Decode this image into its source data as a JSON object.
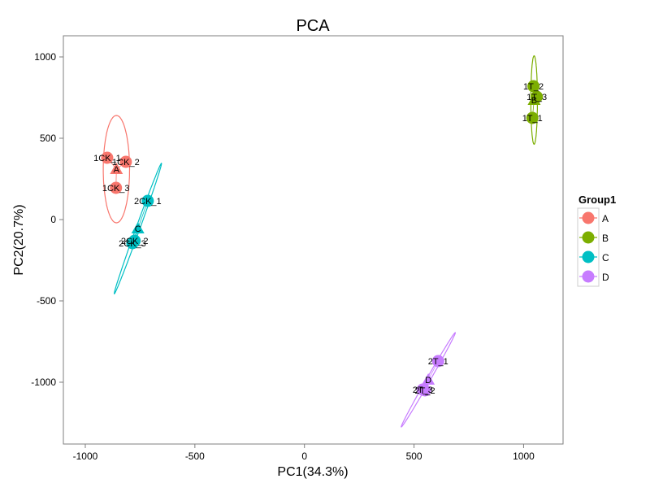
{
  "chart_data": {
    "type": "scatter",
    "title": "PCA",
    "xlabel": "PC1(34.3%)",
    "ylabel": "PC2(20.7%)",
    "xlim": [
      -1100,
      1180
    ],
    "ylim": [
      -1380,
      1130
    ],
    "x_ticks": [
      -1000,
      -500,
      0,
      500,
      1000
    ],
    "x_tick_labels": [
      "-1000",
      "-500",
      "0",
      "500",
      "1000"
    ],
    "y_ticks": [
      -1000,
      -500,
      0,
      500,
      1000
    ],
    "y_tick_labels": [
      "-1000",
      "-500",
      "0",
      "500",
      "1000"
    ],
    "grid": false,
    "legend": {
      "title": "Group1",
      "placement": "right",
      "entries": [
        "A",
        "B",
        "C",
        "D"
      ]
    },
    "series": [
      {
        "name": "A",
        "color": "#F8766D",
        "points": [
          {
            "label": "1CK_1",
            "x": -900,
            "y": 380
          },
          {
            "label": "1CK_2",
            "x": -815,
            "y": 355
          },
          {
            "label": "1CK_3",
            "x": -860,
            "y": 195
          }
        ],
        "centroid": {
          "label": "A",
          "x": -858,
          "y": 310
        },
        "ellipse": {
          "cx": -858,
          "cy": 310,
          "rx": 330,
          "ry": 60,
          "angle": 90
        }
      },
      {
        "name": "B",
        "color": "#7CAE00",
        "points": [
          {
            "label": "1T_2",
            "x": 1045,
            "y": 820
          },
          {
            "label": "1T_3",
            "x": 1060,
            "y": 755
          },
          {
            "label": "1T_1",
            "x": 1040,
            "y": 625
          }
        ],
        "centroid": {
          "label": "B",
          "x": 1048,
          "y": 735
        },
        "ellipse": {
          "cx": 1048,
          "cy": 735,
          "rx": 272,
          "ry": 15,
          "angle": 90
        }
      },
      {
        "name": "C",
        "color": "#00BFC4",
        "points": [
          {
            "label": "2CK_1",
            "x": -715,
            "y": 115
          },
          {
            "label": "2CK_2",
            "x": -775,
            "y": -130
          },
          {
            "label": "2CK_3",
            "x": -785,
            "y": -145
          }
        ],
        "centroid": {
          "label": "C",
          "x": -760,
          "y": -55
        },
        "ellipse": {
          "cx": -760,
          "cy": -55,
          "rx": 415,
          "ry": 9,
          "angle": 75
        }
      },
      {
        "name": "D",
        "color": "#C77CFF",
        "points": [
          {
            "label": "2T_1",
            "x": 610,
            "y": -870
          },
          {
            "label": "2T_2",
            "x": 550,
            "y": -1050
          },
          {
            "label": "2T_3",
            "x": 540,
            "y": -1045
          }
        ],
        "centroid": {
          "label": "D",
          "x": 565,
          "y": -985
        },
        "ellipse": {
          "cx": 565,
          "cy": -985,
          "rx": 315,
          "ry": 9,
          "angle": 67
        }
      }
    ]
  }
}
